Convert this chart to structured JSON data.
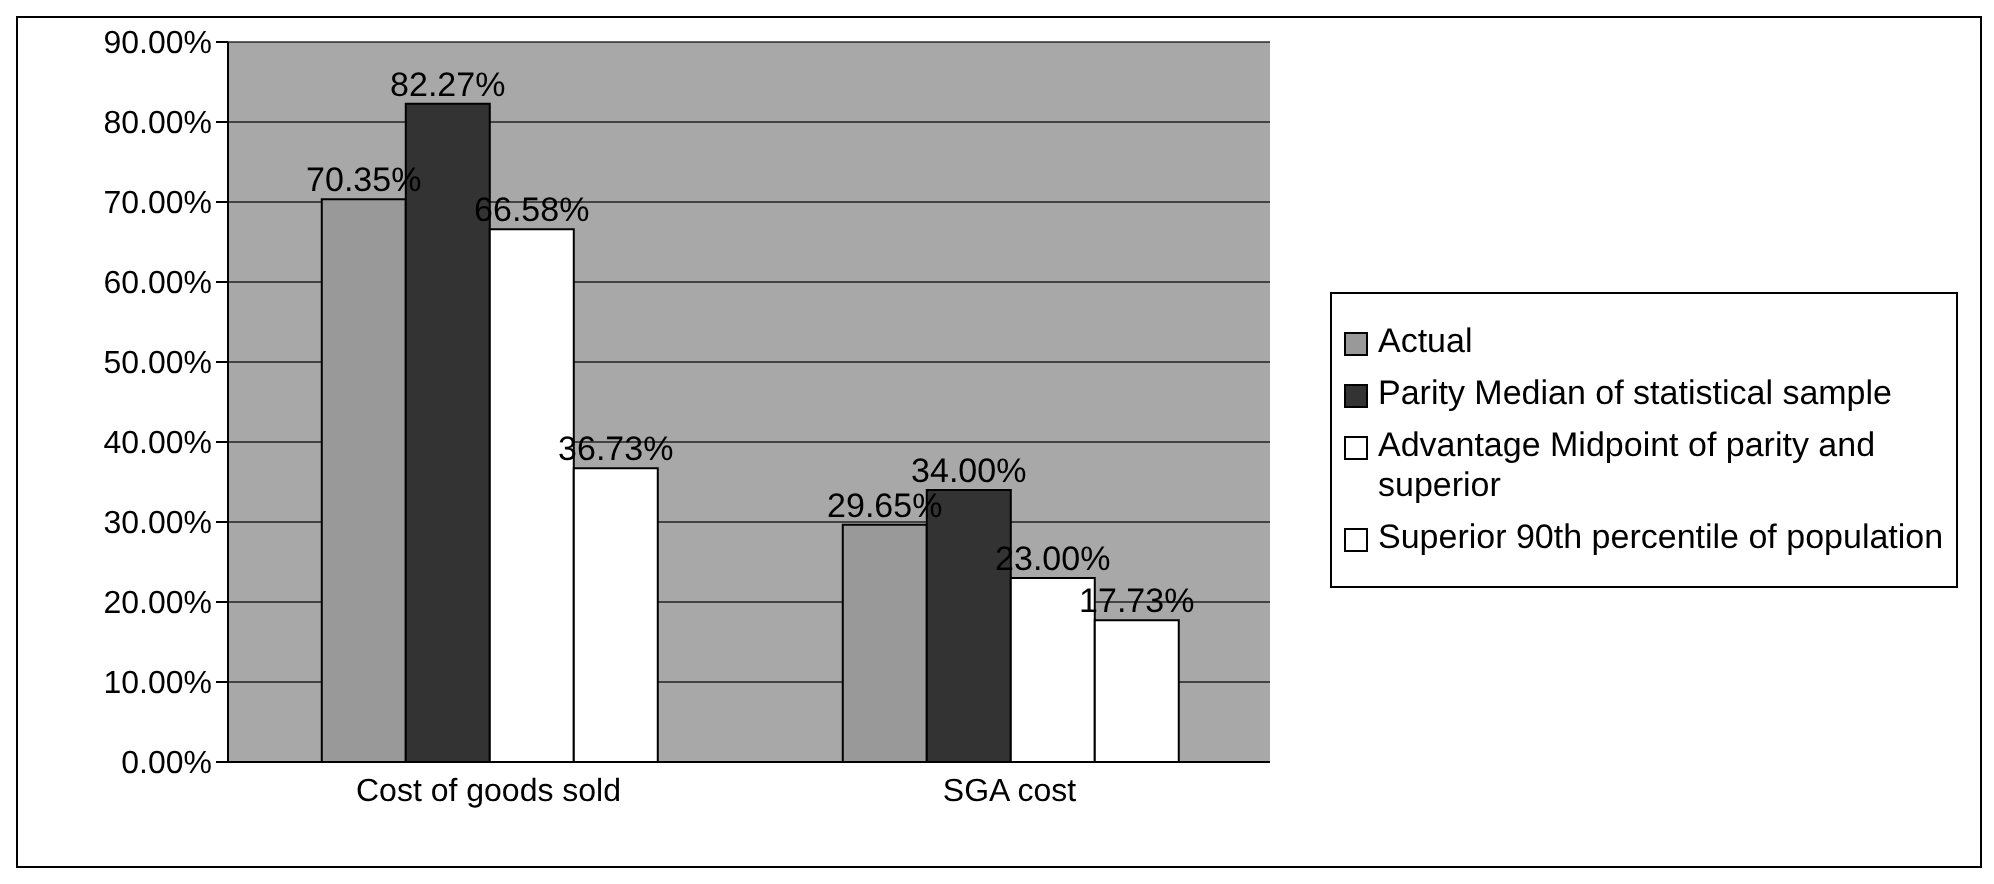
{
  "chart_data": {
    "type": "bar",
    "categories": [
      "Cost of goods sold",
      "SGA cost"
    ],
    "series": [
      {
        "name": "Actual",
        "color": "#999999",
        "values": [
          70.35,
          29.65
        ],
        "value_labels": [
          "70.35%",
          "29.65%"
        ]
      },
      {
        "name": "Parity Median of statistical sample",
        "color": "#333333",
        "values": [
          82.27,
          34.0
        ],
        "value_labels": [
          "82.27%",
          "34.00%"
        ]
      },
      {
        "name": "Advantage Midpoint of parity and superior",
        "color": "#ffffff",
        "values": [
          66.58,
          23.0
        ],
        "value_labels": [
          "66.58%",
          "23.00%"
        ]
      },
      {
        "name": "Superior 90th percentile of population",
        "color": "#ffffff",
        "values": [
          36.73,
          17.73
        ],
        "value_labels": [
          "36.73%",
          "17.73%"
        ]
      }
    ],
    "ylim": [
      0,
      90
    ],
    "yticks": [
      {
        "value": 0,
        "label": "0.00%"
      },
      {
        "value": 10,
        "label": "10.00%"
      },
      {
        "value": 20,
        "label": "20.00%"
      },
      {
        "value": 30,
        "label": "30.00%"
      },
      {
        "value": 40,
        "label": "40.00%"
      },
      {
        "value": 50,
        "label": "50.00%"
      },
      {
        "value": 60,
        "label": "60.00%"
      },
      {
        "value": 70,
        "label": "70.00%"
      },
      {
        "value": 80,
        "label": "80.00%"
      },
      {
        "value": 90,
        "label": "90.00%"
      }
    ],
    "grid": "y",
    "legend": "right"
  }
}
